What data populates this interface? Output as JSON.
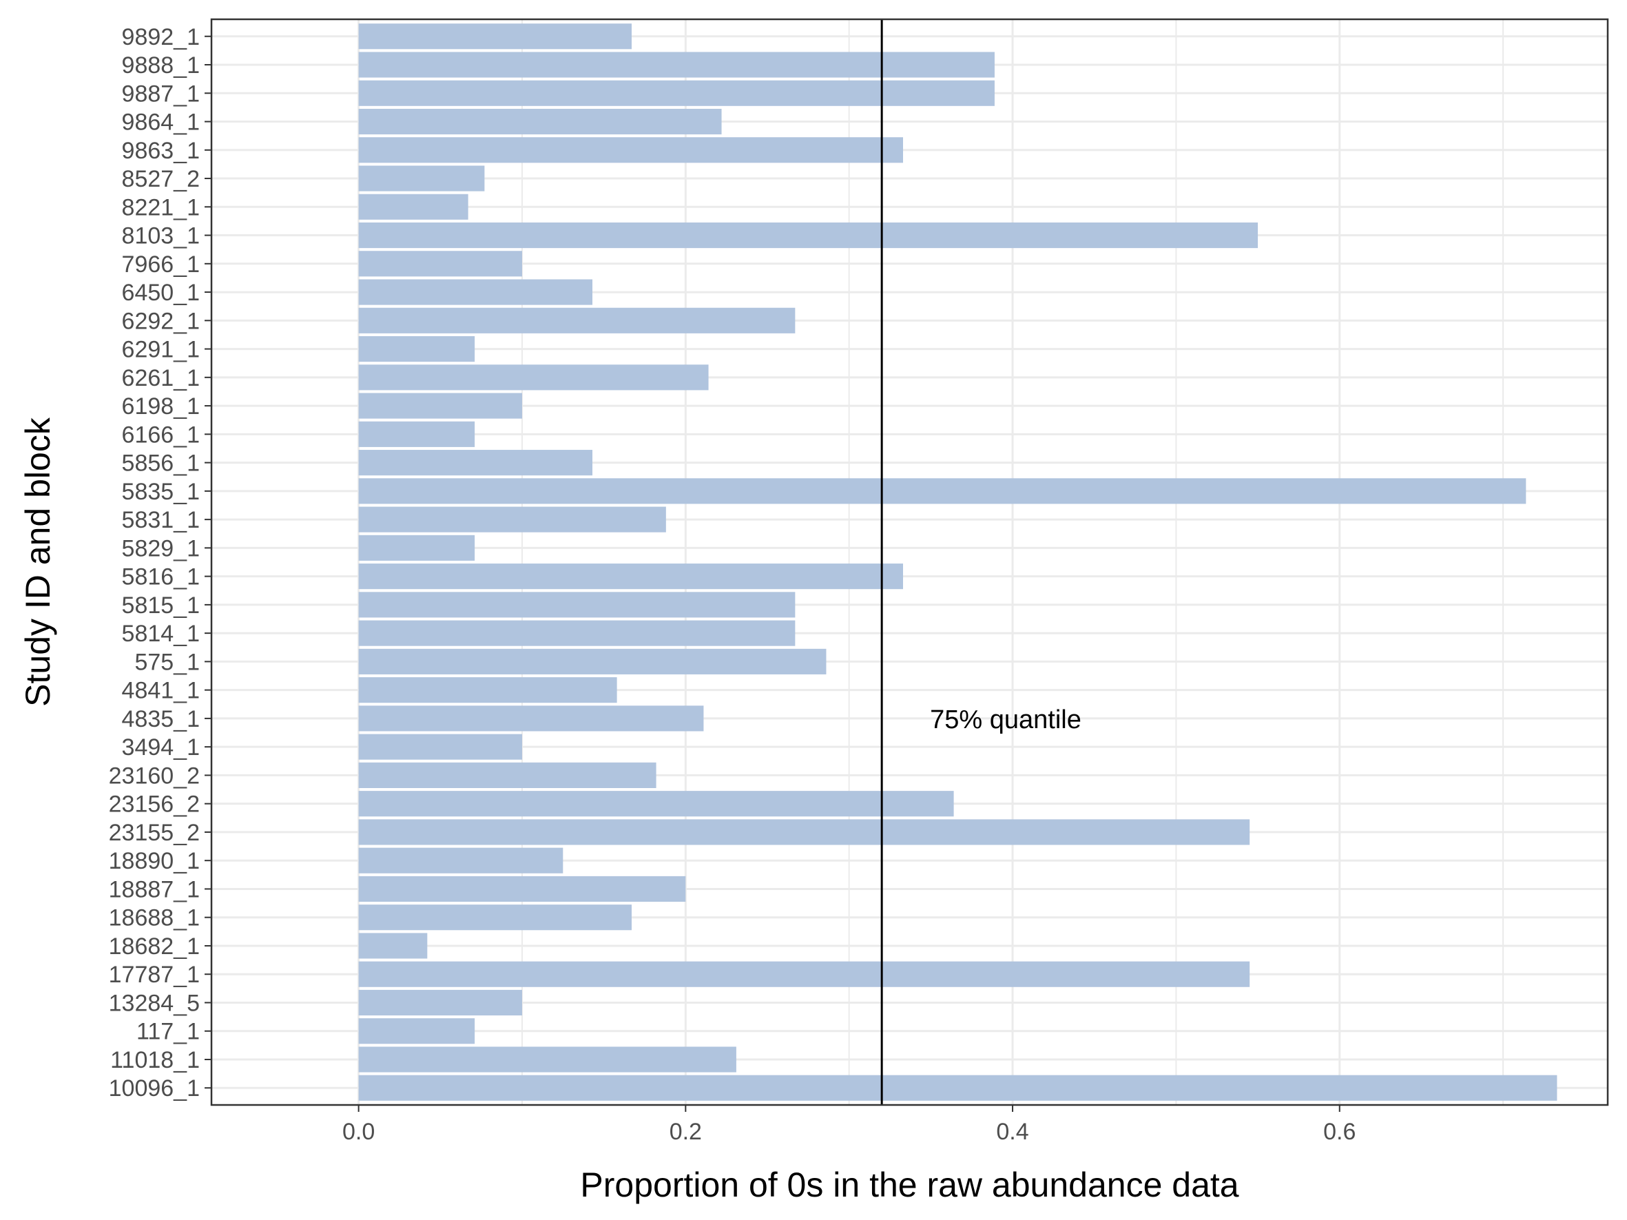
{
  "chart_data": {
    "type": "bar",
    "orientation": "horizontal",
    "xlabel": "Proportion of 0s in the raw abundance data",
    "ylabel": "Study ID and block",
    "xlim": [
      -0.09,
      0.764
    ],
    "xticks": [
      "0.0",
      "0.2",
      "0.4",
      "0.6"
    ],
    "xtick_values": [
      0.0,
      0.2,
      0.4,
      0.6
    ],
    "grid": true,
    "categories": [
      "9892_1",
      "9888_1",
      "9887_1",
      "9864_1",
      "9863_1",
      "8527_2",
      "8221_1",
      "8103_1",
      "7966_1",
      "6450_1",
      "6292_1",
      "6291_1",
      "6261_1",
      "6198_1",
      "6166_1",
      "5856_1",
      "5835_1",
      "5831_1",
      "5829_1",
      "5816_1",
      "5815_1",
      "5814_1",
      "575_1",
      "4841_1",
      "4835_1",
      "3494_1",
      "23160_2",
      "23156_2",
      "23155_2",
      "18890_1",
      "18887_1",
      "18688_1",
      "18682_1",
      "17787_1",
      "13284_5",
      "117_1",
      "11018_1",
      "10096_1"
    ],
    "values": [
      0.167,
      0.389,
      0.389,
      0.222,
      0.333,
      0.077,
      0.067,
      0.55,
      0.1,
      0.143,
      0.267,
      0.071,
      0.214,
      0.1,
      0.071,
      0.143,
      0.714,
      0.188,
      0.071,
      0.333,
      0.267,
      0.267,
      0.286,
      0.158,
      0.211,
      0.1,
      0.182,
      0.364,
      0.545,
      0.125,
      0.2,
      0.167,
      0.042,
      0.545,
      0.1,
      0.071,
      0.231,
      0.733
    ],
    "reference_line": {
      "value": 0.32,
      "label": "75% quantile",
      "label_y_category": "4835_1"
    },
    "colors": {
      "bar": "#b0c4de",
      "grid": "#ebebeb",
      "reference_line": "#000000",
      "panel_border": "#333333"
    }
  }
}
